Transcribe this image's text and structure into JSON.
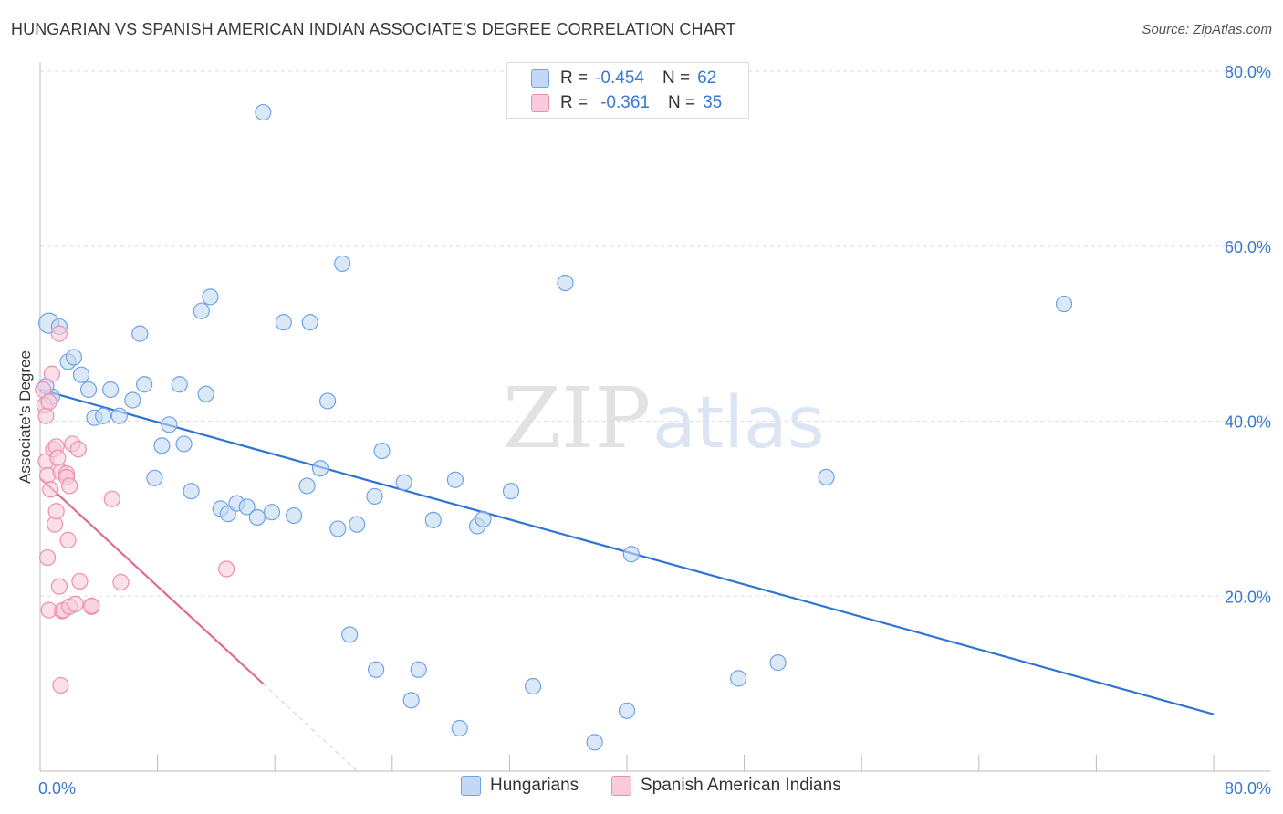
{
  "chart_data": {
    "type": "scatter",
    "title": "HUNGARIAN VS SPANISH AMERICAN INDIAN ASSOCIATE'S DEGREE CORRELATION CHART",
    "source": "Source: ZipAtlas.com",
    "xlabel": "",
    "ylabel": "Associate's Degree",
    "xlim": [
      0,
      80
    ],
    "ylim": [
      0,
      80
    ],
    "x_tick_labels": [
      "0.0%",
      "80.0%"
    ],
    "y_ticks": [
      20,
      40,
      60,
      80
    ],
    "y_tick_labels": [
      "20.0%",
      "40.0%",
      "60.0%",
      "80.0%"
    ],
    "grid": true,
    "watermark": "ZIPatlas",
    "series": [
      {
        "name": "Hungarians",
        "color": "#6fa3e6",
        "fill": "#c3d8f4",
        "line_color": "#2f75d3",
        "R": "-0.454",
        "N": "62",
        "trend": {
          "x": [
            0,
            80
          ],
          "y": [
            43.6,
            6.5
          ]
        },
        "points": [
          [
            0.6,
            51.2
          ],
          [
            0.8,
            42.8
          ],
          [
            1.3,
            50.8
          ],
          [
            1.9,
            46.8
          ],
          [
            2.3,
            47.3
          ],
          [
            2.8,
            45.3
          ],
          [
            3.3,
            43.6
          ],
          [
            3.7,
            40.4
          ],
          [
            4.3,
            40.6
          ],
          [
            4.8,
            43.6
          ],
          [
            5.4,
            40.6
          ],
          [
            6.3,
            42.4
          ],
          [
            6.8,
            50.0
          ],
          [
            7.1,
            44.2
          ],
          [
            7.8,
            33.5
          ],
          [
            8.3,
            37.2
          ],
          [
            8.8,
            39.6
          ],
          [
            9.5,
            44.2
          ],
          [
            9.8,
            37.4
          ],
          [
            10.3,
            32.0
          ],
          [
            11.0,
            52.6
          ],
          [
            11.3,
            43.1
          ],
          [
            11.6,
            54.2
          ],
          [
            12.3,
            30.0
          ],
          [
            12.8,
            29.4
          ],
          [
            13.4,
            30.6
          ],
          [
            14.1,
            30.2
          ],
          [
            14.8,
            29.0
          ],
          [
            15.2,
            75.3
          ],
          [
            15.8,
            29.6
          ],
          [
            16.6,
            51.3
          ],
          [
            17.3,
            29.2
          ],
          [
            18.2,
            32.6
          ],
          [
            18.4,
            51.3
          ],
          [
            19.1,
            34.6
          ],
          [
            19.6,
            42.3
          ],
          [
            20.3,
            27.7
          ],
          [
            20.6,
            58.0
          ],
          [
            21.1,
            15.6
          ],
          [
            21.6,
            28.2
          ],
          [
            22.8,
            31.4
          ],
          [
            22.9,
            11.6
          ],
          [
            23.3,
            36.6
          ],
          [
            24.8,
            33.0
          ],
          [
            25.3,
            8.1
          ],
          [
            25.8,
            11.6
          ],
          [
            26.8,
            28.7
          ],
          [
            28.3,
            33.3
          ],
          [
            28.6,
            4.9
          ],
          [
            29.8,
            28.0
          ],
          [
            30.2,
            28.8
          ],
          [
            32.1,
            32.0
          ],
          [
            33.6,
            9.7
          ],
          [
            35.8,
            55.8
          ],
          [
            37.8,
            3.3
          ],
          [
            40.0,
            6.9
          ],
          [
            40.3,
            24.8
          ],
          [
            47.6,
            10.6
          ],
          [
            50.3,
            12.4
          ],
          [
            53.6,
            33.6
          ],
          [
            69.8,
            53.4
          ],
          [
            0.4,
            44.0
          ]
        ]
      },
      {
        "name": "Spanish American Indians",
        "color": "#ee8fae",
        "fill": "#f8cadb",
        "line_color": "#e06a93",
        "R": "-0.361",
        "N": "35",
        "trend": {
          "x": [
            0,
            15.2
          ],
          "y": [
            33.5,
            10.0
          ]
        },
        "trend_dashed": {
          "x": [
            15.2,
            21.6
          ],
          "y": [
            10.0,
            0.0
          ]
        },
        "points": [
          [
            0.2,
            43.6
          ],
          [
            0.3,
            41.8
          ],
          [
            0.4,
            35.4
          ],
          [
            0.4,
            40.6
          ],
          [
            0.5,
            33.8
          ],
          [
            0.5,
            24.4
          ],
          [
            0.6,
            18.4
          ],
          [
            0.6,
            42.2
          ],
          [
            0.7,
            32.2
          ],
          [
            0.8,
            45.4
          ],
          [
            0.9,
            36.8
          ],
          [
            1.0,
            28.2
          ],
          [
            1.1,
            29.7
          ],
          [
            1.1,
            37.1
          ],
          [
            1.2,
            35.8
          ],
          [
            1.3,
            50.0
          ],
          [
            1.3,
            21.1
          ],
          [
            1.4,
            34.2
          ],
          [
            1.4,
            9.8
          ],
          [
            1.5,
            18.3
          ],
          [
            1.6,
            18.4
          ],
          [
            1.8,
            34.0
          ],
          [
            1.8,
            33.6
          ],
          [
            1.9,
            26.4
          ],
          [
            2.0,
            32.6
          ],
          [
            2.0,
            18.8
          ],
          [
            2.2,
            37.4
          ],
          [
            2.4,
            19.1
          ],
          [
            2.6,
            36.8
          ],
          [
            2.7,
            21.7
          ],
          [
            3.5,
            18.8
          ],
          [
            3.5,
            18.9
          ],
          [
            4.9,
            31.1
          ],
          [
            5.5,
            21.6
          ],
          [
            12.7,
            23.1
          ]
        ]
      }
    ]
  },
  "legend_top": {
    "r_label": "R =",
    "n_label": "N ="
  }
}
